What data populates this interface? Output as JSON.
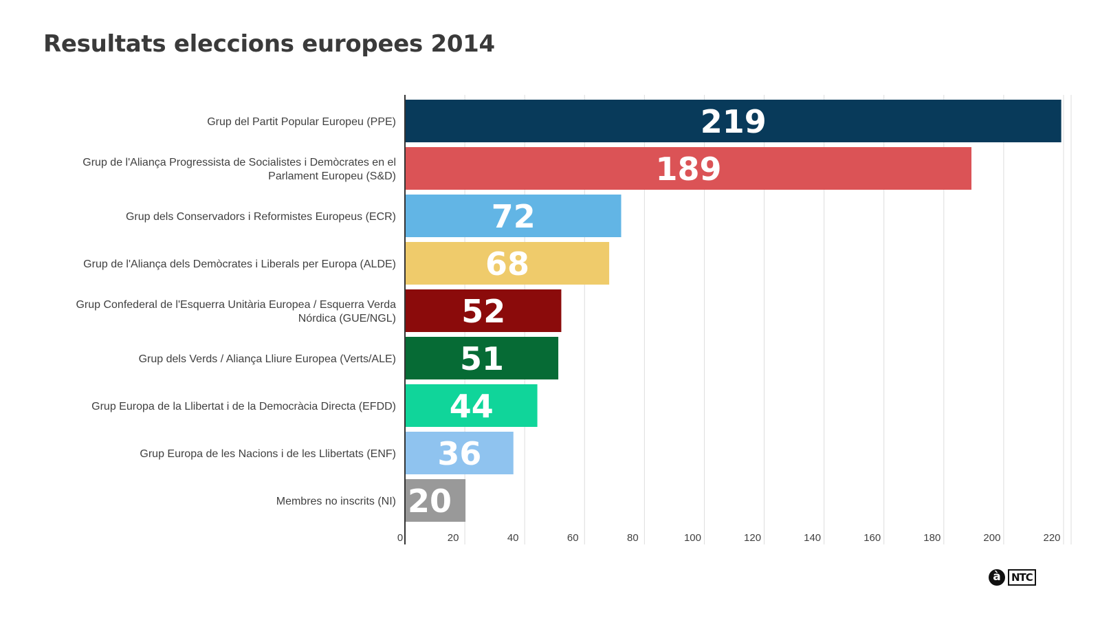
{
  "chart_data": {
    "type": "bar",
    "orientation": "horizontal",
    "title": "Resultats eleccions europees 2014",
    "xlabel": "",
    "ylabel": "",
    "xlim": [
      0,
      220
    ],
    "grid": true,
    "x_ticks": [
      0,
      20,
      40,
      60,
      80,
      100,
      120,
      140,
      160,
      180,
      200,
      220
    ],
    "categories": [
      [
        "Grup del Partit Popular Europeu (PPE)"
      ],
      [
        "Grup de l'Aliança Progressista de Socialistes i Demòcrates en el",
        "Parlament Europeu (S&D)"
      ],
      [
        "Grup dels Conservadors i Reformistes Europeus (ECR)"
      ],
      [
        "Grup de l'Aliança dels Demòcrates i Liberals per Europa (ALDE)"
      ],
      [
        "Grup Confederal de l'Esquerra Unitària Europea / Esquerra Verda",
        "Nórdica (GUE/NGL)"
      ],
      [
        "Grup dels Verds / Aliança Lliure Europea (Verts/ALE)"
      ],
      [
        "Grup Europa de la Llibertat i de la Democràcia Directa (EFDD)"
      ],
      [
        "Grup Europa de les Nacions i de les Llibertats (ENF)"
      ],
      [
        "Membres no inscrits (NI)"
      ]
    ],
    "values": [
      219,
      189,
      72,
      68,
      52,
      51,
      44,
      36,
      20
    ],
    "colors": [
      "#083a5a",
      "#db5356",
      "#62b5e5",
      "#efcb6b",
      "#8b0b0b",
      "#066b35",
      "#10d59a",
      "#8fc3ef",
      "#999999"
    ],
    "data_labels": [
      "219",
      "189",
      "72",
      "68",
      "52",
      "51",
      "44",
      "36",
      "20"
    ],
    "legend": "none"
  },
  "footer": {
    "logo_symbol": "à",
    "logo_text": "NTC"
  }
}
